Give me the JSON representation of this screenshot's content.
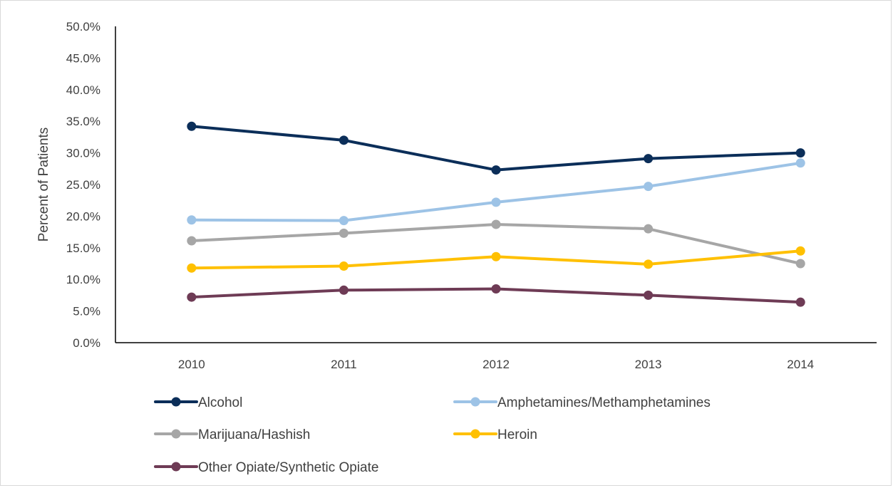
{
  "chart_data": {
    "type": "line",
    "title": "",
    "xlabel": "",
    "ylabel": "Percent of Patients",
    "categories": [
      "2010",
      "2011",
      "2012",
      "2013",
      "2014"
    ],
    "ylim": [
      0,
      50
    ],
    "yticks": [
      "0.0%",
      "5.0%",
      "10.0%",
      "15.0%",
      "20.0%",
      "25.0%",
      "30.0%",
      "35.0%",
      "40.0%",
      "45.0%",
      "50.0%"
    ],
    "grid": false,
    "legend_position": "bottom",
    "series": [
      {
        "name": "Alcohol",
        "color": "#0b2e59",
        "values": [
          34.2,
          32.0,
          27.3,
          29.1,
          30.0
        ]
      },
      {
        "name": "Amphetamines/Methamphetamines",
        "color": "#9dc3e6",
        "values": [
          19.4,
          19.3,
          22.2,
          24.7,
          28.4
        ]
      },
      {
        "name": "Marijuana/Hashish",
        "color": "#a6a6a6",
        "values": [
          16.1,
          17.3,
          18.7,
          18.0,
          12.5
        ]
      },
      {
        "name": "Heroin",
        "color": "#ffc000",
        "values": [
          11.8,
          12.1,
          13.6,
          12.4,
          14.5
        ]
      },
      {
        "name": "Other Opiate/Synthetic Opiate",
        "color": "#6e3b55",
        "values": [
          7.2,
          8.3,
          8.5,
          7.5,
          6.4
        ]
      }
    ]
  }
}
